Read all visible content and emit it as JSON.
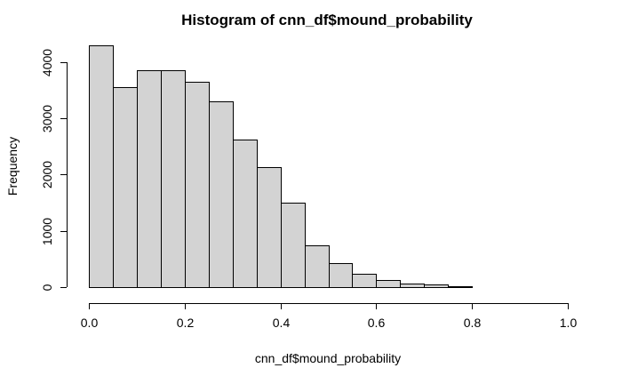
{
  "chart_data": {
    "type": "bar",
    "title": "Histogram of cnn_df$mound_probability",
    "xlabel": "cnn_df$mound_probability",
    "ylabel": "Frequency",
    "bin_edges": [
      0.0,
      0.05,
      0.1,
      0.15,
      0.2,
      0.25,
      0.3,
      0.35,
      0.4,
      0.45,
      0.5,
      0.55,
      0.6,
      0.65,
      0.7,
      0.75,
      0.8,
      0.85,
      0.9,
      0.95,
      1.0
    ],
    "values": [
      4300,
      3550,
      3850,
      3850,
      3650,
      3310,
      2620,
      2130,
      1500,
      740,
      420,
      230,
      130,
      60,
      40,
      10,
      5,
      5,
      5,
      2
    ],
    "x_ticks": [
      "0.0",
      "0.2",
      "0.4",
      "0.6",
      "0.8",
      "1.0"
    ],
    "x_tick_values": [
      0.0,
      0.2,
      0.4,
      0.6,
      0.8,
      1.0
    ],
    "y_ticks": [
      "0",
      "1000",
      "2000",
      "3000",
      "4000"
    ],
    "y_tick_values": [
      0,
      1000,
      2000,
      3000,
      4000
    ],
    "xlim": [
      0,
      1
    ],
    "ylim": [
      0,
      4300
    ],
    "grid": false,
    "bar_fill": "#d3d3d3",
    "bar_stroke": "#000000"
  }
}
